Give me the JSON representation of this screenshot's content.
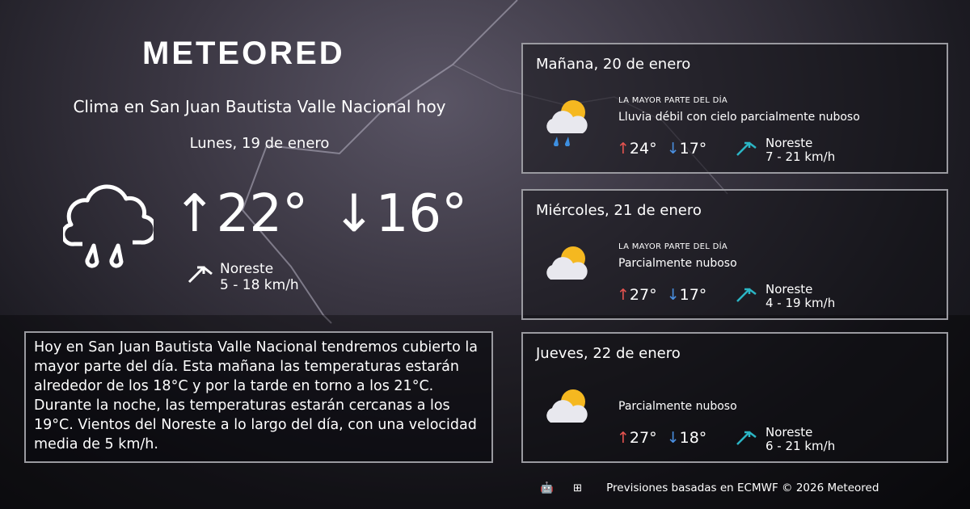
{
  "brand": "METEORED",
  "title": "Clima en San Juan Bautista Valle Nacional hoy",
  "today": {
    "date": "Lunes, 19 de enero",
    "max": "↑22°",
    "min": "↓16°",
    "icon": "cloud-rain-icon",
    "wind_dir": "Noreste",
    "wind_speed": "5 - 18 km/h"
  },
  "description": "Hoy en San Juan Bautista Valle Nacional tendremos cubierto la mayor parte del día. Esta mañana las temperaturas estarán alrededor de los 18°C y por la tarde en torno a los 21°C. Durante la noche, las temperaturas estarán cercanas a los 19°C. Vientos del Noreste a lo largo del día, con una velocidad media de 5 km/h.",
  "forecast": [
    {
      "date": "Mañana, 20 de enero",
      "label": "LA MAYOR PARTE DEL DÍA",
      "condition": "Lluvia débil con cielo parcialmente nuboso",
      "max": "24°",
      "min": "17°",
      "wind_dir": "Noreste",
      "wind_speed": "7 - 21 km/h",
      "icon": "sun-cloud-rain-icon"
    },
    {
      "date": "Miércoles, 21 de enero",
      "label": "LA MAYOR PARTE DEL DÍA",
      "condition": "Parcialmente nuboso",
      "max": "27°",
      "min": "17°",
      "wind_dir": "Noreste",
      "wind_speed": "4 - 19 km/h",
      "icon": "sun-cloud-icon"
    },
    {
      "date": "Jueves, 22 de enero",
      "label": "",
      "condition": "Parcialmente nuboso",
      "max": "27°",
      "min": "18°",
      "wind_dir": "Noreste",
      "wind_speed": "6 - 21 km/h",
      "icon": "sun-cloud-icon"
    }
  ],
  "footer": {
    "text": "Previsiones basadas en ECMWF © 2026 Meteored",
    "icons": [
      "android-icon",
      "apple-icon",
      "windows-icon"
    ]
  },
  "colors": {
    "max": "#e85450",
    "min": "#4a90e2",
    "wind": "#2bb5c4"
  }
}
